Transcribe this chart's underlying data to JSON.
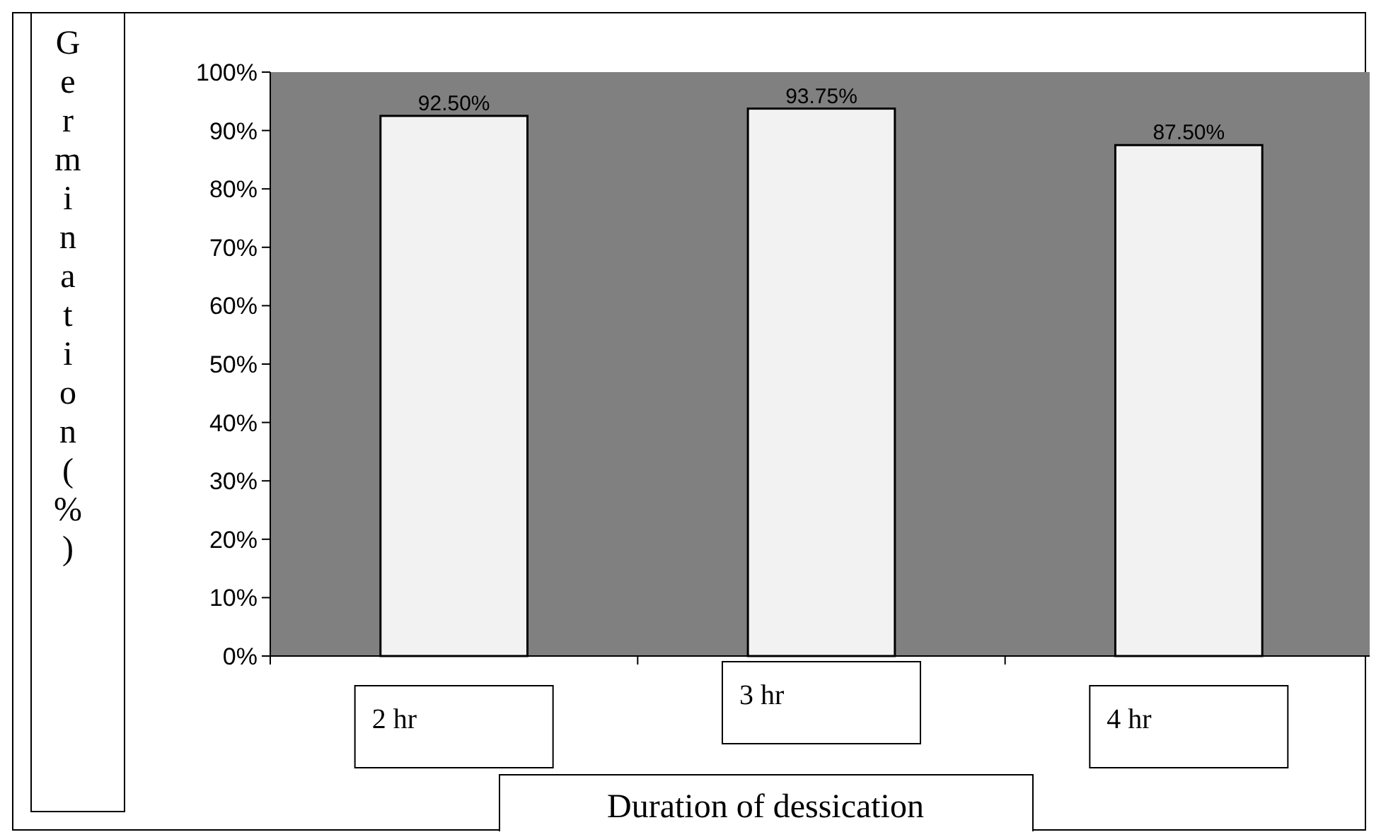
{
  "chart_data": {
    "type": "bar",
    "xlabel": "Duration of dessication",
    "ylabel": "Germination(%)",
    "categories": [
      "2 hr",
      "3 hr",
      "4 hr"
    ],
    "values": [
      92.5,
      93.75,
      87.5
    ],
    "value_labels": [
      "92.50%",
      "93.75%",
      "87.50%"
    ],
    "color": "#f2f2f2",
    "ylim": [
      0,
      100
    ],
    "yticks": [
      {
        "value": 0,
        "label": "0%"
      },
      {
        "value": 10,
        "label": "10%"
      },
      {
        "value": 20,
        "label": "20%"
      },
      {
        "value": 30,
        "label": "30%"
      },
      {
        "value": 40,
        "label": "40%"
      },
      {
        "value": 50,
        "label": "50%"
      },
      {
        "value": 60,
        "label": "60%"
      },
      {
        "value": 70,
        "label": "70%"
      },
      {
        "value": 80,
        "label": "80%"
      },
      {
        "value": 90,
        "label": "90%"
      },
      {
        "value": 100,
        "label": "100%"
      }
    ],
    "grid": false
  }
}
